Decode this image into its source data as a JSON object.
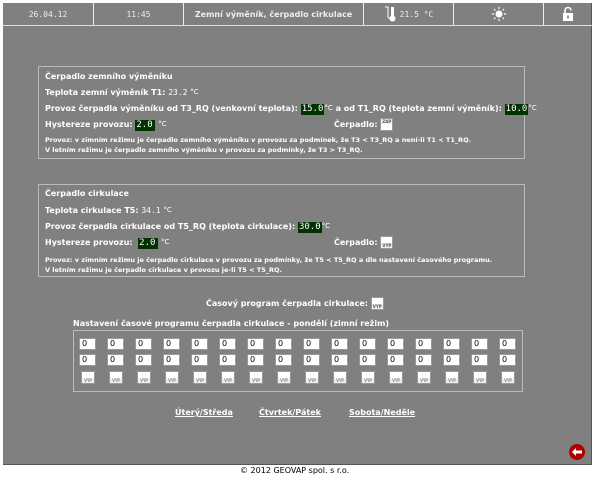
{
  "header": {
    "date": "26.04.12",
    "time": "11:45",
    "title": "Zemní výměník, čerpadlo cirkulace",
    "temperature": "21.5 °C",
    "thermometer_icon": "thermometer-icon",
    "mode_icon": "sun-icon",
    "lock_icon": "unlock-icon"
  },
  "exchanger": {
    "title": "Čerpadlo zemního výměníku",
    "temp_label": "Teplota zemní výměník T1:",
    "temp_value": "23.2",
    "unit": "°C",
    "t3_label": "Provoz čerpadla výměníku od T3_RQ (venkovní teplota):",
    "t3_value": "15.0",
    "t1_label": "a od T1_RQ (teplota zemní výměník):",
    "t1_value": "10.0",
    "hyst_label": "Hystereze provozu:",
    "hyst_value": "2.0",
    "pump_label": "Čerpadlo:",
    "pump_state": "ZAP",
    "note1": "Provoz: v zimním režimu je čerpadlo zemního výměníku v provozu za podmínek, že T3 < T3_RQ a není-li T1 < T1_RQ.",
    "note2": "V letním režimu je čerpadlo zemního výměníku v provozu za podmínky, že T3 > T3_RQ."
  },
  "circulation": {
    "title": "Čerpadlo cirkulace",
    "temp_label": "Teplota cirkulace T5:",
    "temp_value": "34.1",
    "unit": "°C",
    "t5_label": "Provoz čerpadla cirkulace od T5_RQ (teplota cirkulace):",
    "t5_value": "30.0",
    "hyst_label": "Hystereze provozu:",
    "hyst_value": "2.0",
    "pump_label": "Čerpadlo:",
    "pump_state": "VYP",
    "note1": "Provoz: v zimním režimu je čerpadlo cirkulace v provozu za podmínky, že T5 < T5_RQ a dle nastavení časového programu.",
    "note2": "V letním režimu je čerpadlo cirkulace v provozu je-li T5 < T5_RQ."
  },
  "schedule": {
    "program_label": "Časový program čerpadla cirkulace:",
    "program_state": "VYP",
    "title": "Nastavení časové programu čerpadla cirkulace - pondělí (zimní režim)",
    "row1": [
      "0",
      "0",
      "0",
      "0",
      "0",
      "0",
      "0",
      "0",
      "0",
      "0",
      "0",
      "0",
      "0",
      "0",
      "0",
      "0"
    ],
    "row2": [
      "0",
      "0",
      "0",
      "0",
      "0",
      "0",
      "0",
      "0",
      "0",
      "0",
      "0",
      "0",
      "0",
      "0",
      "0",
      "0"
    ],
    "states": [
      "VYP",
      "VYP",
      "VYP",
      "VYP",
      "VYP",
      "VYP",
      "VYP",
      "VYP",
      "VYP",
      "VYP",
      "VYP",
      "VYP",
      "VYP",
      "VYP",
      "VYP",
      "VYP"
    ]
  },
  "links": [
    "Úterý/Středa",
    "Čtvrtek/Pátek",
    "Sobota/Neděle"
  ],
  "back_icon": "back-arrow-icon",
  "footer": "© 2012 GEOVAP spol. s r.o."
}
